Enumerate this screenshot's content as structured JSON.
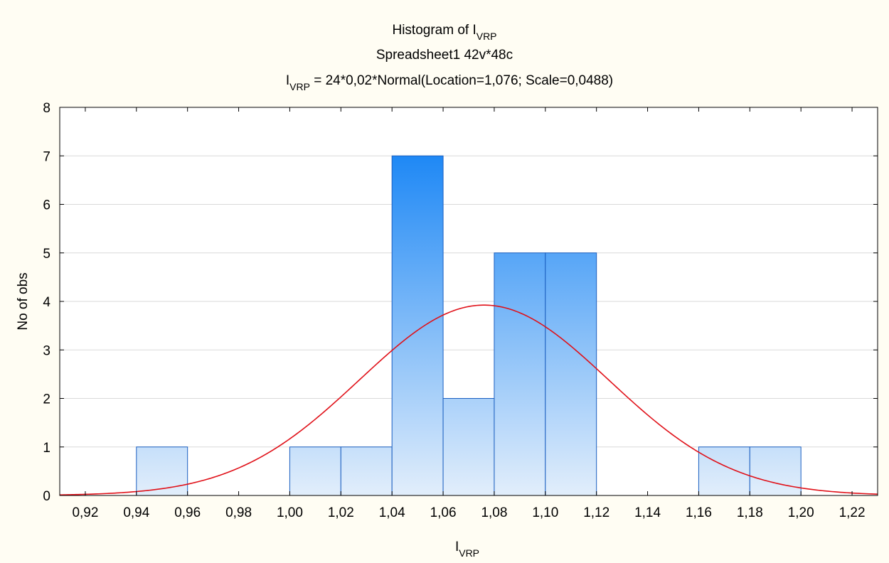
{
  "chart_data": {
    "type": "bar",
    "title_main": "Histogram of I",
    "title_main_sub": "VRP",
    "subtitle": "Spreadsheet1 42v*48c",
    "formula_prefix": "I",
    "formula_prefix_sub": "VRP",
    "formula_rest": " = 24*0,02*Normal(Location=1,076; Scale=0,0488)",
    "xlabel": "I",
    "xlabel_sub": "VRP",
    "ylabel": "No of obs",
    "xlim": [
      0.91,
      1.23
    ],
    "ylim": [
      0,
      8
    ],
    "x_ticks": [
      0.92,
      0.94,
      0.96,
      0.98,
      1.0,
      1.02,
      1.04,
      1.06,
      1.08,
      1.1,
      1.12,
      1.14,
      1.16,
      1.18,
      1.2,
      1.22
    ],
    "x_tick_labels": [
      "0,92",
      "0,94",
      "0,96",
      "0,98",
      "1,00",
      "1,02",
      "1,04",
      "1,06",
      "1,08",
      "1,10",
      "1,12",
      "1,14",
      "1,16",
      "1,18",
      "1,20",
      "1,22"
    ],
    "y_ticks": [
      0,
      1,
      2,
      3,
      4,
      5,
      6,
      7,
      8
    ],
    "y_tick_labels": [
      "0",
      "1",
      "2",
      "3",
      "4",
      "5",
      "6",
      "7",
      "8"
    ],
    "bins": [
      {
        "from": 0.94,
        "to": 0.96,
        "count": 1
      },
      {
        "from": 0.96,
        "to": 0.98,
        "count": 0
      },
      {
        "from": 0.98,
        "to": 1.0,
        "count": 0
      },
      {
        "from": 1.0,
        "to": 1.02,
        "count": 1
      },
      {
        "from": 1.02,
        "to": 1.04,
        "count": 1
      },
      {
        "from": 1.04,
        "to": 1.06,
        "count": 7
      },
      {
        "from": 1.06,
        "to": 1.08,
        "count": 2
      },
      {
        "from": 1.08,
        "to": 1.1,
        "count": 5
      },
      {
        "from": 1.1,
        "to": 1.12,
        "count": 5
      },
      {
        "from": 1.12,
        "to": 1.14,
        "count": 0
      },
      {
        "from": 1.14,
        "to": 1.16,
        "count": 0
      },
      {
        "from": 1.16,
        "to": 1.18,
        "count": 1
      },
      {
        "from": 1.18,
        "to": 1.2,
        "count": 1
      }
    ],
    "normal_fit": {
      "n": 24,
      "bin_width": 0.02,
      "location": 1.076,
      "scale": 0.0488
    },
    "grid": true,
    "colors": {
      "background": "#fffdf3",
      "plot_bg": "#ffffff",
      "bar_top": "#1e88f5",
      "bar_bottom": "#e2eefb",
      "bar_stroke": "#1b5fc0",
      "curve": "#e01018",
      "grid": "#d9d9d9",
      "axis": "#000000"
    }
  }
}
